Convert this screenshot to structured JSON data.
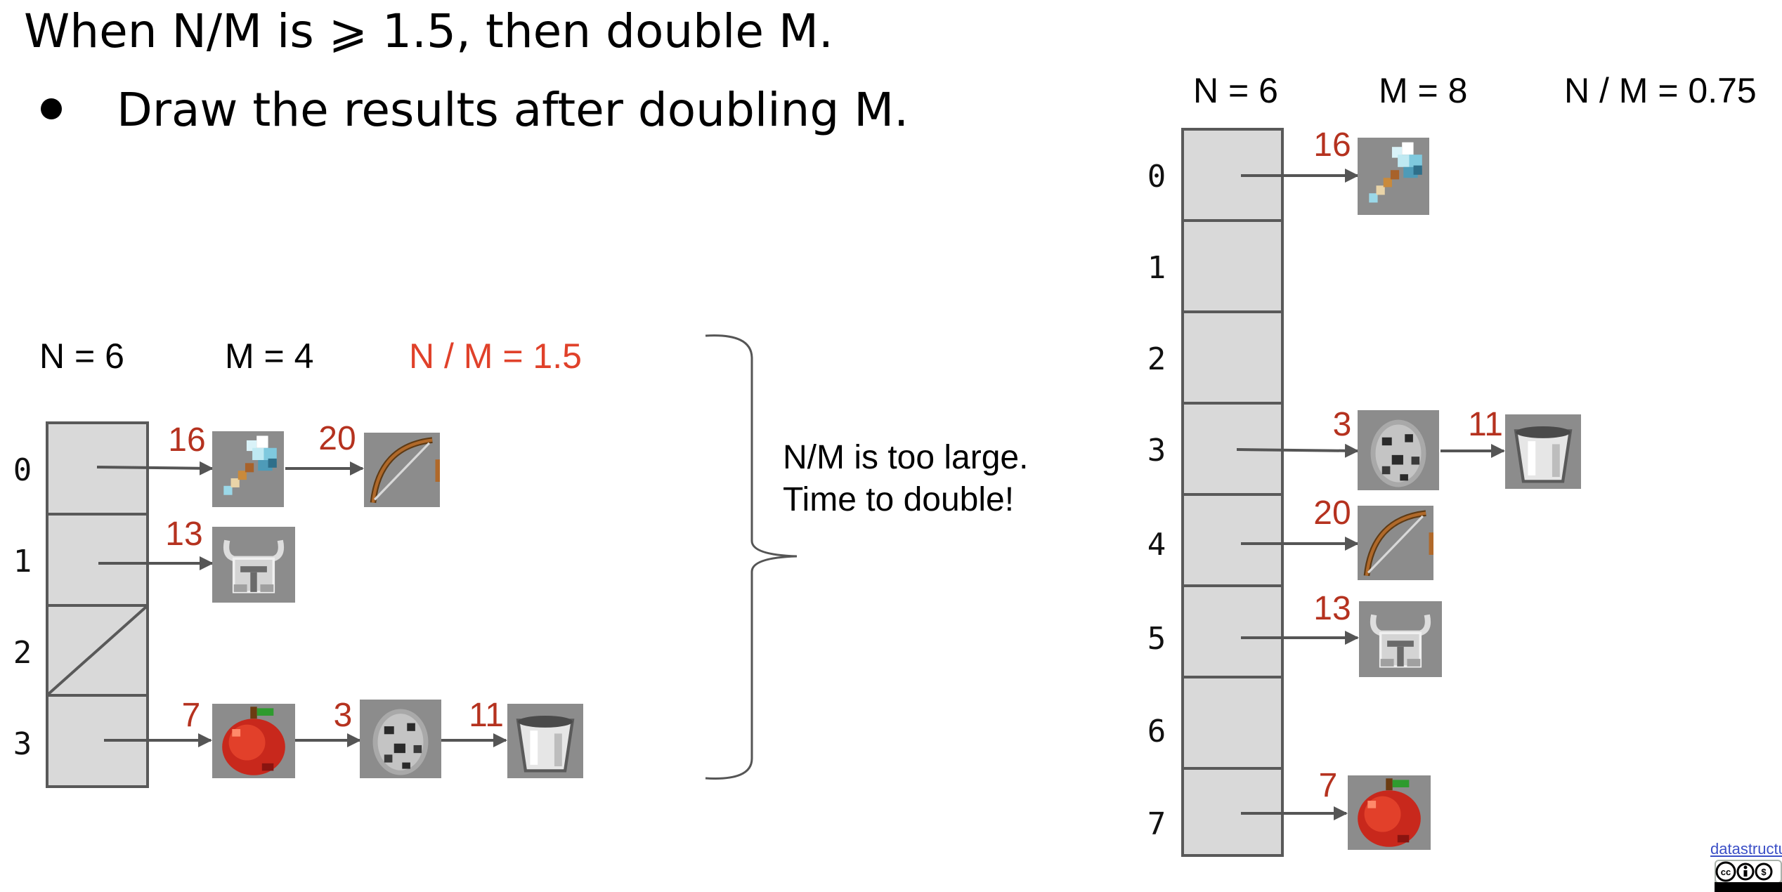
{
  "heading": "When N/M is ⩾ 1.5, then double M.",
  "bullet": "Draw the results after doubling M.",
  "left_stats": {
    "n": "N = 6",
    "m": "M = 4",
    "ratio": "N / M = 1.5",
    "ratio_color": "#e0412a"
  },
  "right_stats": {
    "n": "N = 6",
    "m": "M = 8",
    "ratio": "N / M = 0.75"
  },
  "note": {
    "line1": "N/M is too large.",
    "line2": "Time to double!"
  },
  "key_color": "#b5321f",
  "left_table": {
    "indices": [
      "0",
      "1",
      "2",
      "3"
    ],
    "buckets": [
      [
        {
          "key": "16",
          "item": "axe-icon"
        },
        {
          "key": "20",
          "item": "bow-icon"
        }
      ],
      [
        {
          "key": "13",
          "item": "helmet-icon"
        }
      ],
      [],
      [
        {
          "key": "7",
          "item": "apple-icon"
        },
        {
          "key": "3",
          "item": "spawn-egg-icon"
        },
        {
          "key": "11",
          "item": "bucket-icon"
        }
      ]
    ]
  },
  "right_table": {
    "indices": [
      "0",
      "1",
      "2",
      "3",
      "4",
      "5",
      "6",
      "7"
    ],
    "buckets": [
      [
        {
          "key": "16",
          "item": "axe-icon"
        }
      ],
      [],
      [],
      [
        {
          "key": "3",
          "item": "spawn-egg-icon"
        },
        {
          "key": "11",
          "item": "bucket-icon"
        }
      ],
      [
        {
          "key": "20",
          "item": "bow-icon"
        }
      ],
      [
        {
          "key": "13",
          "item": "helmet-icon"
        }
      ],
      [],
      [
        {
          "key": "7",
          "item": "apple-icon"
        }
      ]
    ]
  },
  "footer": {
    "link": "datastructur.es",
    "license_badge": "cc-by-nc-sa-badge"
  }
}
